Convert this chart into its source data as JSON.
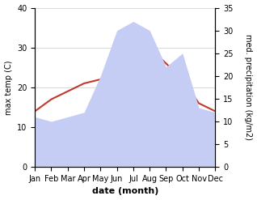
{
  "months": [
    "Jan",
    "Feb",
    "Mar",
    "Apr",
    "May",
    "Jun",
    "Jul",
    "Aug",
    "Sep",
    "Oct",
    "Nov",
    "Dec"
  ],
  "max_temp": [
    14,
    17,
    19,
    21,
    22,
    25,
    30,
    30,
    26,
    22,
    16,
    14
  ],
  "precipitation": [
    11,
    10,
    11,
    12,
    20,
    30,
    32,
    30,
    22,
    25,
    13,
    12
  ],
  "temp_color": "#c0392b",
  "precip_fill_color": "#c5cdf5",
  "ylim_temp": [
    0,
    40
  ],
  "ylim_precip": [
    0,
    35
  ],
  "yticks_temp": [
    0,
    10,
    20,
    30,
    40
  ],
  "yticks_precip": [
    0,
    5,
    10,
    15,
    20,
    25,
    30,
    35
  ],
  "xlabel": "date (month)",
  "ylabel_left": "max temp (C)",
  "ylabel_right": "med. precipitation (kg/m2)",
  "xlabel_fontsize": 8,
  "ylabel_fontsize": 7,
  "tick_fontsize": 7,
  "background_color": "#ffffff",
  "grid_color": "#cccccc"
}
